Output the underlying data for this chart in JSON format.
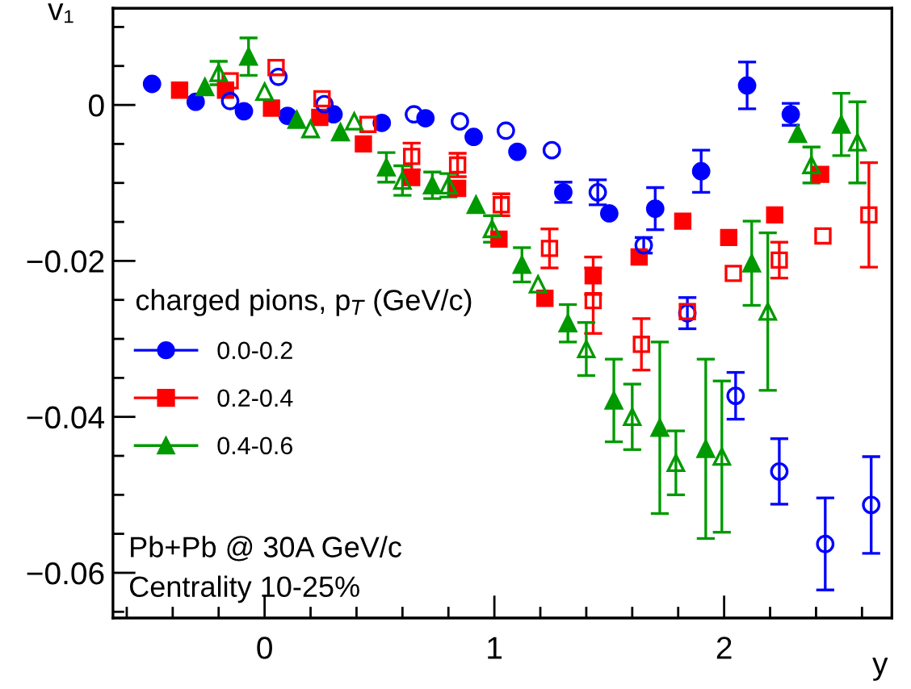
{
  "chart_data": {
    "type": "scatter",
    "xlabel": "y",
    "ylabel": "v₁",
    "legend_title": "charged pions, p$_{T}$ (GeV/c)",
    "annotations": [
      "Pb+Pb @ 30A GeV/c",
      "Centrality 10-25%"
    ],
    "xlim": [
      -0.66,
      2.73
    ],
    "ylim": [
      -0.0658,
      0.0124
    ],
    "xticks": [
      {
        "value": -0.6,
        "label": null
      },
      {
        "value": -0.4,
        "label": null
      },
      {
        "value": -0.2,
        "label": null
      },
      0,
      {
        "value": 0.2,
        "label": null
      },
      {
        "value": 0.4,
        "label": null
      },
      {
        "value": 0.6,
        "label": null
      },
      {
        "value": 0.8,
        "label": null
      },
      1,
      {
        "value": 1.2,
        "label": null
      },
      {
        "value": 1.4,
        "label": null
      },
      {
        "value": 1.6,
        "label": null
      },
      {
        "value": 1.8,
        "label": null
      },
      2,
      {
        "value": 2.2,
        "label": null
      },
      {
        "value": 2.4,
        "label": null
      },
      {
        "value": 2.6,
        "label": null
      }
    ],
    "yticks": [
      {
        "value": -0.065,
        "label": null
      },
      {
        "value": -0.06,
        "label": "−0.06"
      },
      {
        "value": -0.055,
        "label": null
      },
      {
        "value": -0.05,
        "label": null
      },
      {
        "value": -0.045,
        "label": null
      },
      {
        "value": -0.04,
        "label": "−0.04"
      },
      {
        "value": -0.035,
        "label": null
      },
      {
        "value": -0.03,
        "label": null
      },
      {
        "value": -0.025,
        "label": null
      },
      {
        "value": -0.02,
        "label": "−0.02"
      },
      {
        "value": -0.015,
        "label": null
      },
      {
        "value": -0.01,
        "label": null
      },
      {
        "value": -0.005,
        "label": null
      },
      0,
      {
        "value": 0.005,
        "label": null
      },
      {
        "value": 0.01,
        "label": null
      }
    ],
    "grid": false,
    "legend": "left",
    "line_style": "none",
    "series": [
      {
        "name": "0.0-0.2",
        "color": "#0000ff",
        "marker": "circle",
        "x": [
          -0.49,
          -0.3,
          -0.09,
          0.1,
          0.3,
          0.51,
          0.7,
          0.91,
          1.1,
          1.3,
          1.5,
          1.7,
          1.9,
          2.1,
          2.29
        ],
        "values": [
          0.0027,
          0.0004,
          -0.0008,
          -0.0014,
          -0.0012,
          -0.0023,
          -0.0017,
          -0.0041,
          -0.006,
          -0.0112,
          -0.0139,
          -0.0133,
          -0.0085,
          0.0025,
          -0.0012
        ],
        "errors": [
          null,
          null,
          null,
          null,
          null,
          null,
          null,
          null,
          null,
          0.0013,
          null,
          0.0027,
          0.0027,
          0.003,
          0.0014
        ]
      },
      {
        "name": "0.2-0.4",
        "color": "#ff0000",
        "marker": "square",
        "x": [
          -0.37,
          -0.17,
          0.03,
          0.24,
          0.43,
          0.64,
          0.84,
          1.02,
          1.22,
          1.43,
          1.63,
          1.82,
          2.02,
          2.22,
          2.42
        ],
        "values": [
          0.0019,
          0.0019,
          -0.0004,
          -0.0016,
          -0.005,
          -0.0093,
          -0.0107,
          -0.0172,
          -0.0248,
          -0.0219,
          -0.0195,
          -0.0149,
          -0.017,
          -0.0141,
          -0.0089
        ],
        "errors": [
          null,
          null,
          null,
          null,
          null,
          null,
          null,
          null,
          null,
          0.0024,
          null,
          null,
          null,
          null,
          null
        ]
      },
      {
        "name": "0.4-0.6",
        "color": "#009900",
        "marker": "triangle",
        "x": [
          -0.26,
          -0.07,
          0.14,
          0.33,
          0.53,
          0.73,
          0.92,
          1.12,
          1.32,
          1.52,
          1.72,
          1.92,
          2.12,
          2.32,
          2.51
        ],
        "values": [
          0.0023,
          0.0062,
          -0.0019,
          -0.0035,
          -0.008,
          -0.0103,
          -0.0128,
          -0.0205,
          -0.028,
          -0.0379,
          -0.0414,
          -0.0441,
          -0.0203,
          -0.0037,
          -0.0025
        ],
        "errors": [
          null,
          0.0024,
          null,
          null,
          0.0019,
          0.0017,
          null,
          0.0022,
          0.0024,
          0.0053,
          0.011,
          0.0115,
          0.0054,
          null,
          0.004
        ]
      },
      {
        "color": "#0000ff",
        "marker": "circle",
        "x": [
          -0.15,
          0.06,
          0.26,
          0.65,
          0.85,
          1.05,
          1.25,
          1.45,
          1.65,
          1.84,
          2.05,
          2.24,
          2.44,
          2.64
        ],
        "values": [
          0.0005,
          0.0036,
          0.0001,
          -0.0012,
          -0.0021,
          -0.0033,
          -0.0058,
          -0.0112,
          -0.018,
          -0.0267,
          -0.0373,
          -0.047,
          -0.0563,
          -0.0513
        ],
        "errors": [
          null,
          null,
          null,
          null,
          null,
          null,
          null,
          0.0016,
          0.001,
          0.002,
          0.003,
          0.0042,
          0.0059,
          0.0062
        ]
      },
      {
        "color": "#ff0000",
        "marker": "square",
        "x": [
          -0.15,
          0.05,
          0.25,
          0.45,
          0.64,
          0.84,
          1.03,
          1.24,
          1.43,
          1.64,
          1.84,
          2.04,
          2.24,
          2.43,
          2.63
        ],
        "values": [
          0.0031,
          0.0048,
          0.0008,
          -0.0025,
          -0.0066,
          -0.0077,
          -0.0128,
          -0.0184,
          -0.0251,
          -0.0307,
          -0.0265,
          -0.0216,
          -0.0199,
          -0.0168,
          -0.0141
        ],
        "errors": [
          null,
          null,
          null,
          null,
          0.0017,
          0.0015,
          0.0014,
          0.0025,
          0.0042,
          0.0033,
          null,
          null,
          0.0023,
          null,
          0.0067
        ]
      },
      {
        "color": "#009900",
        "marker": "triangle",
        "x": [
          -0.2,
          0.0,
          0.2,
          0.39,
          0.6,
          0.8,
          0.99,
          1.19,
          1.4,
          1.6,
          1.79,
          1.99,
          2.19,
          2.38,
          2.58
        ],
        "values": [
          0.0041,
          0.0017,
          -0.0031,
          -0.0021,
          -0.0097,
          -0.0103,
          -0.0159,
          -0.023,
          -0.0313,
          -0.04,
          -0.0459,
          -0.0451,
          -0.0265,
          -0.0077,
          -0.0048
        ],
        "errors": [
          0.0015,
          null,
          null,
          null,
          0.0019,
          0.0015,
          0.0017,
          null,
          0.0034,
          0.0042,
          0.0041,
          0.0097,
          0.0101,
          0.0023,
          0.0052
        ]
      }
    ]
  }
}
